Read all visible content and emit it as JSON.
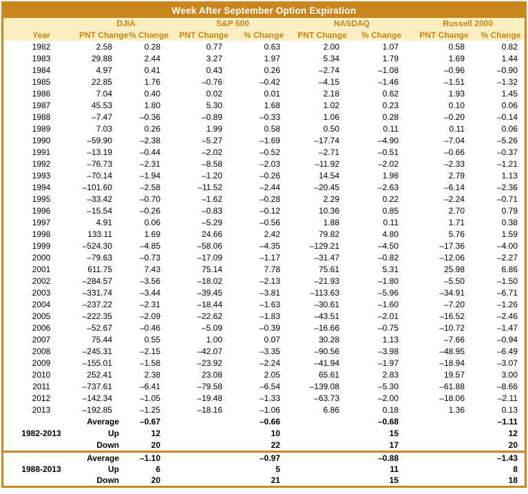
{
  "title": "Week After September Option Expiration",
  "colors": {
    "accent_orange": "#C8861D",
    "header_bg": "#FBEEC3",
    "header_text": "#C9850F",
    "negative_red": "#EE1111",
    "positive_black": "#000000",
    "title_text": "#FFFFFF"
  },
  "chart_data": {
    "type": "table",
    "title": "Week After September Option Expiration",
    "column_groups": [
      "DJIA",
      "S&P 500",
      "NASDAQ",
      "Russell 2000"
    ],
    "year_header": "Year",
    "sub_columns": [
      "PNT Change",
      "% Change",
      "PNT Change",
      "% Change",
      "PNT Change",
      "% Change",
      "PNT Change",
      "% Change"
    ],
    "rows": [
      {
        "year": "1982",
        "values": [
          "2.58",
          "0.28",
          "0.77",
          "0.63",
          "2.00",
          "1.07",
          "0.58",
          "0.82"
        ]
      },
      {
        "year": "1983",
        "values": [
          "29.88",
          "2.44",
          "3.27",
          "1.97",
          "5.34",
          "1.79",
          "1.69",
          "1.44"
        ]
      },
      {
        "year": "1984",
        "values": [
          "4.97",
          "0.41",
          "0.43",
          "0.26",
          "-2.74",
          "-1.08",
          "-0.96",
          "-0.90"
        ]
      },
      {
        "year": "1985",
        "values": [
          "22.85",
          "1.76",
          "-0.76",
          "-0.42",
          "-4.15",
          "-1.46",
          "-1.51",
          "-1.32"
        ]
      },
      {
        "year": "1986",
        "values": [
          "7.04",
          "0.40",
          "0.02",
          "0.01",
          "2.18",
          "0.62",
          "1.93",
          "1.45"
        ]
      },
      {
        "year": "1987",
        "values": [
          "45.53",
          "1.80",
          "5.30",
          "1.68",
          "1.02",
          "0.23",
          "0.10",
          "0.06"
        ]
      },
      {
        "year": "1988",
        "values": [
          "-7.47",
          "-0.36",
          "-0.89",
          "-0.33",
          "1.06",
          "0.28",
          "-0.20",
          "-0.14"
        ]
      },
      {
        "year": "1989",
        "values": [
          "7.03",
          "0.26",
          "1.99",
          "0.58",
          "0.50",
          "0.11",
          "0.11",
          "0.06"
        ]
      },
      {
        "year": "1990",
        "values": [
          "-59.90",
          "-2.38",
          "-5.27",
          "-1.69",
          "-17.74",
          "-4.90",
          "-7.04",
          "-5.26"
        ]
      },
      {
        "year": "1991",
        "values": [
          "-13.19",
          "-0.44",
          "-2.02",
          "-0.52",
          "-2.71",
          "-0.51",
          "-0.66",
          "-0.37"
        ]
      },
      {
        "year": "1992",
        "values": [
          "-76.73",
          "-2.31",
          "-8.58",
          "-2.03",
          "-11.92",
          "-2.02",
          "-2.33",
          "-1.21"
        ]
      },
      {
        "year": "1993",
        "values": [
          "-70.14",
          "-1.94",
          "-1.20",
          "-0.26",
          "14.54",
          "1.96",
          "2.79",
          "1.13"
        ]
      },
      {
        "year": "1994",
        "values": [
          "-101.60",
          "-2.58",
          "-11.52",
          "-2.44",
          "-20.45",
          "-2.63",
          "-6.14",
          "-2.36"
        ]
      },
      {
        "year": "1995",
        "values": [
          "-33.42",
          "-0.70",
          "-1.62",
          "-0.28",
          "2.29",
          "0.22",
          "-2.24",
          "-0.71"
        ]
      },
      {
        "year": "1996",
        "values": [
          "-15.54",
          "-0.26",
          "-0.83",
          "-0.12",
          "10.36",
          "0.85",
          "2.70",
          "0.79"
        ]
      },
      {
        "year": "1997",
        "values": [
          "4.91",
          "0.06",
          "-5.29",
          "-0.56",
          "1.88",
          "0.11",
          "1.71",
          "0.38"
        ]
      },
      {
        "year": "1998",
        "values": [
          "133.11",
          "1.69",
          "24.66",
          "2.42",
          "79.82",
          "4.80",
          "5.76",
          "1.59"
        ]
      },
      {
        "year": "1999",
        "values": [
          "-524.30",
          "-4.85",
          "-58.06",
          "-4.35",
          "-129.21",
          "-4.50",
          "-17.36",
          "-4.00"
        ]
      },
      {
        "year": "2000",
        "values": [
          "-79.63",
          "-0.73",
          "-17.09",
          "-1.17",
          "-31.47",
          "-0.82",
          "-12.06",
          "-2.27"
        ]
      },
      {
        "year": "2001",
        "values": [
          "611.75",
          "7.43",
          "75.14",
          "7.78",
          "75.61",
          "5.31",
          "25.98",
          "6.86"
        ]
      },
      {
        "year": "2002",
        "values": [
          "-284.57",
          "-3.56",
          "-18.02",
          "-2.13",
          "-21.93",
          "-1.80",
          "-5.50",
          "-1.50"
        ]
      },
      {
        "year": "2003",
        "values": [
          "-331.74",
          "-3.44",
          "-39.45",
          "-3.81",
          "-113.63",
          "-5.96",
          "-34.91",
          "-6.71"
        ]
      },
      {
        "year": "2004",
        "values": [
          "-237.22",
          "-2.31",
          "-18.44",
          "-1.63",
          "-30.61",
          "-1.60",
          "-7.20",
          "-1.26"
        ]
      },
      {
        "year": "2005",
        "values": [
          "-222.35",
          "-2.09",
          "-22.62",
          "-1.83",
          "-43.51",
          "-2.01",
          "-16.52",
          "-2.46"
        ]
      },
      {
        "year": "2006",
        "values": [
          "-52.67",
          "-0.46",
          "-5.09",
          "-0.39",
          "-16.66",
          "-0.75",
          "-10.72",
          "-1.47"
        ]
      },
      {
        "year": "2007",
        "values": [
          "75.44",
          "0.55",
          "1.00",
          "0.07",
          "30.28",
          "1.13",
          "-7.66",
          "-0.94"
        ]
      },
      {
        "year": "2008",
        "values": [
          "-245.31",
          "-2.15",
          "-42.07",
          "-3.35",
          "-90.56",
          "-3.98",
          "-48.95",
          "-6.49"
        ]
      },
      {
        "year": "2009",
        "values": [
          "-155.01",
          "-1.58",
          "-23.92",
          "-2.24",
          "-41.94",
          "-1.97",
          "-18.94",
          "-3.07"
        ]
      },
      {
        "year": "2010",
        "values": [
          "252.41",
          "2.38",
          "23.08",
          "2.05",
          "65.61",
          "2.83",
          "19.57",
          "3.00"
        ]
      },
      {
        "year": "2011",
        "values": [
          "-737.61",
          "-6.41",
          "-79.58",
          "-6.54",
          "-139.08",
          "-5.30",
          "-61.88",
          "-8.66"
        ]
      },
      {
        "year": "2012",
        "values": [
          "-142.34",
          "-1.05",
          "-19.48",
          "-1.33",
          "-63.73",
          "-2.00",
          "-18.06",
          "-2.11"
        ]
      },
      {
        "year": "2013",
        "values": [
          "-192.85",
          "-1.25",
          "-18.16",
          "-1.06",
          "6.86",
          "0.18",
          "1.36",
          "0.13"
        ]
      }
    ],
    "summaries": [
      {
        "period": "1982-2013",
        "rows": [
          {
            "label": "Average",
            "values": [
              "-0.67",
              "-0.66",
              "-0.68",
              "-1.11"
            ]
          },
          {
            "label": "Up",
            "values": [
              "12",
              "10",
              "15",
              "12"
            ]
          },
          {
            "label": "Down",
            "values": [
              "20",
              "22",
              "17",
              "20"
            ]
          }
        ]
      },
      {
        "period": "1988-2013",
        "rows": [
          {
            "label": "Average",
            "values": [
              "-1.10",
              "-0.97",
              "-0.88",
              "-1.43"
            ]
          },
          {
            "label": "Up",
            "values": [
              "6",
              "5",
              "11",
              "8"
            ]
          },
          {
            "label": "Down",
            "values": [
              "20",
              "21",
              "15",
              "18"
            ]
          }
        ]
      }
    ]
  }
}
